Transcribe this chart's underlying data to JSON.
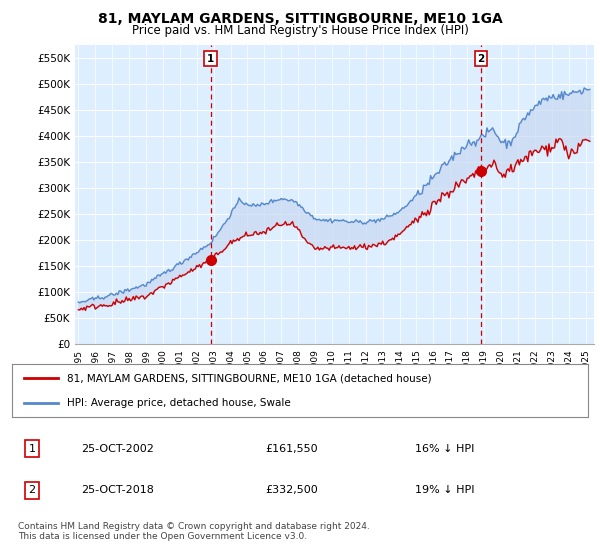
{
  "title": "81, MAYLAM GARDENS, SITTINGBOURNE, ME10 1GA",
  "subtitle": "Price paid vs. HM Land Registry's House Price Index (HPI)",
  "title_fontsize": 10,
  "subtitle_fontsize": 8.5,
  "ylabel_ticks": [
    "£0",
    "£50K",
    "£100K",
    "£150K",
    "£200K",
    "£250K",
    "£300K",
    "£350K",
    "£400K",
    "£450K",
    "£500K",
    "£550K"
  ],
  "ylim": [
    0,
    575000
  ],
  "xlim_start": 1994.8,
  "xlim_end": 2025.5,
  "background_color": "#ffffff",
  "plot_bg_color": "#ddeeff",
  "grid_color": "#ffffff",
  "hpi_color": "#5588cc",
  "price_color": "#cc0000",
  "fill_color": "#c8d8f0",
  "purchase1_date_x": 2002.82,
  "purchase1_price": 161550,
  "purchase1_label": "1",
  "purchase2_date_x": 2018.82,
  "purchase2_price": 332500,
  "purchase2_label": "2",
  "legend_line1": "81, MAYLAM GARDENS, SITTINGBOURNE, ME10 1GA (detached house)",
  "legend_line2": "HPI: Average price, detached house, Swale",
  "table_row1": [
    "1",
    "25-OCT-2002",
    "£161,550",
    "16% ↓ HPI"
  ],
  "table_row2": [
    "2",
    "25-OCT-2018",
    "£332,500",
    "19% ↓ HPI"
  ],
  "footnote": "Contains HM Land Registry data © Crown copyright and database right 2024.\nThis data is licensed under the Open Government Licence v3.0.",
  "xtick_years": [
    1995,
    1996,
    1997,
    1998,
    1999,
    2000,
    2001,
    2002,
    2003,
    2004,
    2005,
    2006,
    2007,
    2008,
    2009,
    2010,
    2011,
    2012,
    2013,
    2014,
    2015,
    2016,
    2017,
    2018,
    2019,
    2020,
    2021,
    2022,
    2023,
    2024,
    2025
  ]
}
